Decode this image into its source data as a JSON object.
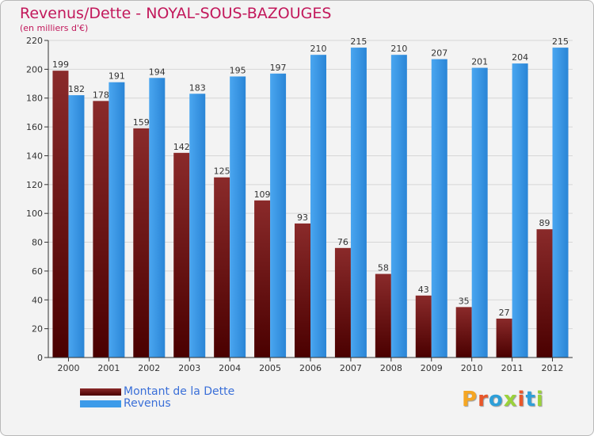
{
  "title": "Revenus/Dette - NOYAL-SOUS-BAZOUGES",
  "subtitle": "(en milliers d'€)",
  "brand": {
    "letters": [
      "P",
      "r",
      "o",
      "x",
      "i",
      "t",
      "i"
    ],
    "colors": [
      "#f5a623",
      "#e8572a",
      "#2e9fd8",
      "#9ad23a",
      "#e8572a",
      "#2e9fd8",
      "#9ad23a"
    ]
  },
  "chart_data": {
    "type": "bar",
    "categories": [
      "2000",
      "2001",
      "2002",
      "2003",
      "2004",
      "2005",
      "2006",
      "2007",
      "2008",
      "2009",
      "2010",
      "2011",
      "2012"
    ],
    "series": [
      {
        "name": "Montant de la Dette",
        "color": "#7a1a1a",
        "values": [
          199,
          178,
          159,
          142,
          125,
          109,
          93,
          76,
          58,
          43,
          35,
          27,
          89
        ]
      },
      {
        "name": "Revenus",
        "color": "#3d9be9",
        "values": [
          182,
          191,
          194,
          183,
          195,
          197,
          210,
          215,
          210,
          207,
          201,
          204,
          215
        ]
      }
    ],
    "ylim": [
      0,
      220
    ],
    "yticks": [
      0,
      20,
      40,
      60,
      80,
      100,
      120,
      140,
      160,
      180,
      200,
      220
    ],
    "grid": true,
    "legend_position": "bottom-left"
  }
}
